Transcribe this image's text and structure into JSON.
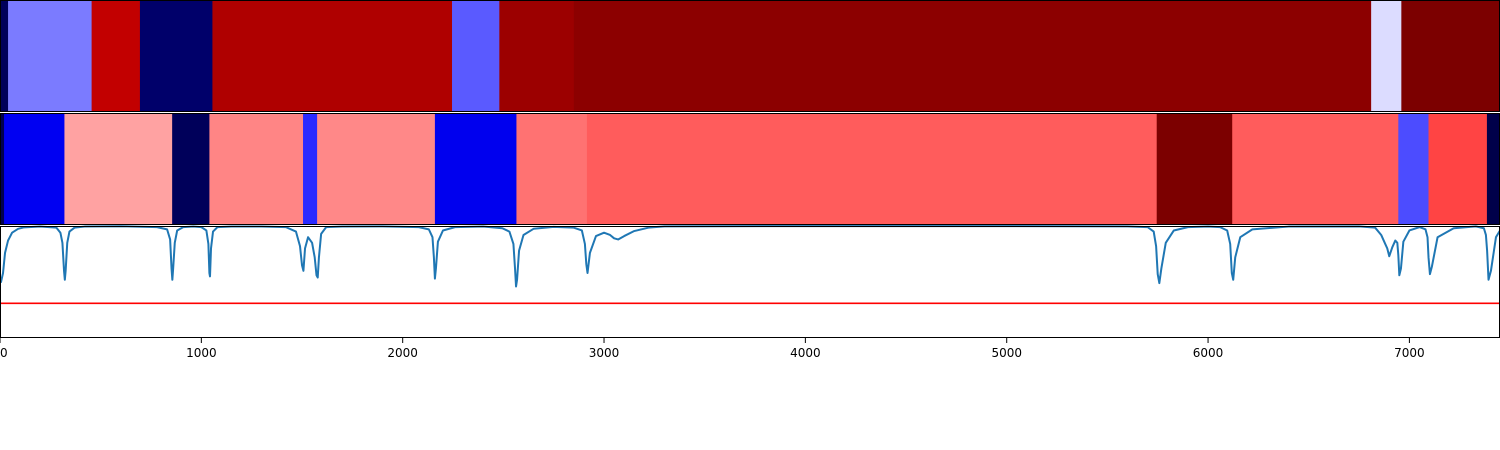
{
  "chart_data": [
    {
      "type": "heatmap",
      "segments": [
        {
          "start": 0,
          "end": 40,
          "color": "#00005a"
        },
        {
          "start": 40,
          "end": 455,
          "color": "#7b7bff"
        },
        {
          "start": 455,
          "end": 695,
          "color": "#c20000"
        },
        {
          "start": 695,
          "end": 1055,
          "color": "#00006a"
        },
        {
          "start": 1055,
          "end": 2245,
          "color": "#af0000"
        },
        {
          "start": 2245,
          "end": 2480,
          "color": "#5a5aff"
        },
        {
          "start": 2480,
          "end": 2850,
          "color": "#9c0000"
        },
        {
          "start": 2850,
          "end": 6810,
          "color": "#8c0000"
        },
        {
          "start": 6810,
          "end": 6960,
          "color": "#dcdcff"
        },
        {
          "start": 6960,
          "end": 7450,
          "color": "#7c0000"
        }
      ]
    },
    {
      "type": "heatmap",
      "segments": [
        {
          "start": 0,
          "end": 20,
          "color": "#000050"
        },
        {
          "start": 20,
          "end": 320,
          "color": "#0000f2"
        },
        {
          "start": 320,
          "end": 855,
          "color": "#ffa2a2"
        },
        {
          "start": 855,
          "end": 1040,
          "color": "#00005a"
        },
        {
          "start": 1040,
          "end": 1505,
          "color": "#ff8585"
        },
        {
          "start": 1505,
          "end": 1575,
          "color": "#2a2aff"
        },
        {
          "start": 1575,
          "end": 2160,
          "color": "#ff8888"
        },
        {
          "start": 2160,
          "end": 2565,
          "color": "#0000ee"
        },
        {
          "start": 2565,
          "end": 2915,
          "color": "#ff7272"
        },
        {
          "start": 2915,
          "end": 5745,
          "color": "#ff5c5c"
        },
        {
          "start": 5745,
          "end": 6120,
          "color": "#7c0000"
        },
        {
          "start": 6120,
          "end": 6945,
          "color": "#ff5c5c"
        },
        {
          "start": 6945,
          "end": 7095,
          "color": "#4c4cff"
        },
        {
          "start": 7095,
          "end": 7385,
          "color": "#ff4444"
        },
        {
          "start": 7385,
          "end": 7450,
          "color": "#00004a"
        }
      ]
    },
    {
      "type": "line",
      "xlim": [
        0,
        7450
      ],
      "ylim": [
        0,
        1
      ],
      "series": [
        {
          "color": "#1f77b4",
          "x": [
            0,
            5,
            15,
            25,
            40,
            60,
            90,
            120,
            200,
            280,
            300,
            310,
            318,
            322,
            326,
            334,
            345,
            370,
            420,
            600,
            780,
            830,
            845,
            852,
            856,
            860,
            868,
            880,
            910,
            960,
            1000,
            1025,
            1035,
            1040,
            1043,
            1048,
            1058,
            1080,
            1150,
            1300,
            1420,
            1470,
            1490,
            1500,
            1507,
            1515,
            1530,
            1550,
            1563,
            1572,
            1578,
            1584,
            1595,
            1620,
            1700,
            1900,
            2080,
            2130,
            2148,
            2155,
            2160,
            2165,
            2175,
            2200,
            2260,
            2400,
            2495,
            2530,
            2550,
            2558,
            2563,
            2568,
            2578,
            2600,
            2650,
            2750,
            2850,
            2890,
            2905,
            2912,
            2918,
            2930,
            2960,
            3000,
            3030,
            3050,
            3070,
            3100,
            3150,
            3220,
            3300,
            4000,
            5000,
            5600,
            5700,
            5730,
            5742,
            5750,
            5758,
            5768,
            5790,
            5830,
            5900,
            6000,
            6060,
            6095,
            6110,
            6118,
            6125,
            6135,
            6160,
            6220,
            6400,
            6750,
            6830,
            6860,
            6880,
            6890,
            6900,
            6915,
            6930,
            6940,
            6945,
            6950,
            6958,
            6970,
            7000,
            7050,
            7080,
            7090,
            7095,
            7102,
            7112,
            7140,
            7220,
            7330,
            7370,
            7380,
            7386,
            7393,
            7405,
            7430,
            7450
          ],
          "y": [
            0.5,
            0.5,
            0.58,
            0.76,
            0.87,
            0.94,
            0.975,
            0.988,
            0.995,
            0.985,
            0.94,
            0.85,
            0.6,
            0.52,
            0.6,
            0.85,
            0.95,
            0.985,
            0.995,
            0.998,
            0.99,
            0.97,
            0.88,
            0.62,
            0.52,
            0.62,
            0.85,
            0.96,
            0.99,
            0.995,
            0.99,
            0.96,
            0.84,
            0.58,
            0.55,
            0.8,
            0.95,
            0.99,
            0.996,
            0.996,
            0.99,
            0.95,
            0.82,
            0.65,
            0.6,
            0.8,
            0.9,
            0.85,
            0.72,
            0.56,
            0.54,
            0.72,
            0.93,
            0.99,
            0.996,
            0.997,
            0.99,
            0.97,
            0.9,
            0.72,
            0.53,
            0.62,
            0.86,
            0.96,
            0.99,
            0.996,
            0.98,
            0.95,
            0.84,
            0.62,
            0.46,
            0.52,
            0.78,
            0.92,
            0.975,
            0.992,
            0.985,
            0.96,
            0.84,
            0.66,
            0.58,
            0.76,
            0.91,
            0.94,
            0.92,
            0.89,
            0.88,
            0.91,
            0.955,
            0.985,
            0.997,
            0.999,
            0.999,
            0.997,
            0.99,
            0.95,
            0.82,
            0.57,
            0.49,
            0.62,
            0.85,
            0.96,
            0.99,
            0.996,
            0.99,
            0.96,
            0.84,
            0.58,
            0.52,
            0.72,
            0.9,
            0.97,
            0.995,
            0.997,
            0.985,
            0.92,
            0.84,
            0.8,
            0.73,
            0.81,
            0.87,
            0.85,
            0.74,
            0.56,
            0.62,
            0.86,
            0.96,
            0.99,
            0.97,
            0.9,
            0.72,
            0.57,
            0.64,
            0.9,
            0.98,
            0.997,
            0.98,
            0.92,
            0.78,
            0.52,
            0.6,
            0.9,
            0.96
          ]
        },
        {
          "color": "#ff0000",
          "x": [
            0,
            7450
          ],
          "y": [
            0.31,
            0.31
          ]
        }
      ],
      "xticks": [
        0,
        1000,
        2000,
        3000,
        4000,
        5000,
        6000,
        7000
      ],
      "tick_labels": [
        "0",
        "1000",
        "2000",
        "3000",
        "4000",
        "5000",
        "6000",
        "7000"
      ]
    }
  ]
}
